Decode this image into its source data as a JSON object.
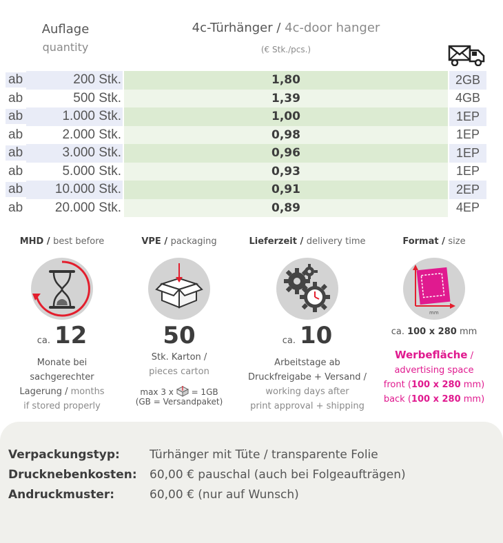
{
  "header": {
    "qty_de": "Auflage",
    "qty_en": "quantity",
    "product_de": "4c-Türhänger",
    "product_sep": " / ",
    "product_en": "4c-door hanger",
    "unit": "(€ Stk./pcs.)",
    "shipping_icon": "truck-mail-icon"
  },
  "rows": [
    {
      "ab": "ab",
      "qty": "200 Stk.",
      "price": "1,80",
      "ship": "2GB"
    },
    {
      "ab": "ab",
      "qty": "500 Stk.",
      "price": "1,39",
      "ship": "4GB"
    },
    {
      "ab": "ab",
      "qty": "1.000 Stk.",
      "price": "1,00",
      "ship": "1EP"
    },
    {
      "ab": "ab",
      "qty": "2.000 Stk.",
      "price": "0,98",
      "ship": "1EP"
    },
    {
      "ab": "ab",
      "qty": "3.000 Stk.",
      "price": "0,96",
      "ship": "1EP"
    },
    {
      "ab": "ab",
      "qty": "5.000 Stk.",
      "price": "0,93",
      "ship": "1EP"
    },
    {
      "ab": "ab",
      "qty": "10.000 Stk.",
      "price": "0,91",
      "ship": "2EP"
    },
    {
      "ab": "ab",
      "qty": "20.000 Stk.",
      "price": "0,89",
      "ship": "4EP"
    }
  ],
  "mhd": {
    "head_de": "MHD",
    "head_en": "best before",
    "ca": "ca.",
    "number": "12",
    "line1": "Monate bei",
    "line2": "sachgerechter",
    "line3_de": "Lagerung",
    "line3_en": "months",
    "line4": "if stored properly",
    "icon": "hourglass-icon"
  },
  "vpe": {
    "head_de": "VPE",
    "head_en": "packaging",
    "number": "50",
    "line1": "Stk. Karton /",
    "line2": "pieces carton",
    "note1_a": "max 3 x",
    "note1_b": "= 1GB",
    "note2": "(GB = Versandpaket)",
    "icon": "box-icon"
  },
  "delivery": {
    "head_de": "Lieferzeit",
    "head_en": "delivery time",
    "ca": "ca.",
    "number": "10",
    "line1": "Arbeitstage ab",
    "line2": "Druckfreigabe + Versand /",
    "line3": "working days after",
    "line4": "print approval + shipping",
    "icon": "gears-clock-icon"
  },
  "format": {
    "head_de": "Format",
    "head_en": "size",
    "size_prefix": "ca.",
    "size_value": "100 x 280",
    "size_unit": "mm",
    "adv_title": "Werbefläche",
    "adv_sep": " /",
    "adv_en": "advertising space",
    "front_label": "front (",
    "front_value": "100 x 280",
    "front_unit": " mm)",
    "back_label": "back (",
    "back_value": "100 x 280",
    "back_unit": " mm)",
    "icon_label": "mm",
    "accent": "#e01a8f",
    "icon": "format-sheet-icon"
  },
  "footer": {
    "items": [
      {
        "label": "Verpackungstyp:",
        "value": "Türhänger mit Tüte / transparente Folie"
      },
      {
        "label": "Drucknebenkosten:",
        "value": "60,00 € pauschal (auch bei Folgeaufträgen)"
      },
      {
        "label": "Andruckmuster:",
        "value": "60,00 € (nur auf Wunsch)"
      }
    ]
  }
}
